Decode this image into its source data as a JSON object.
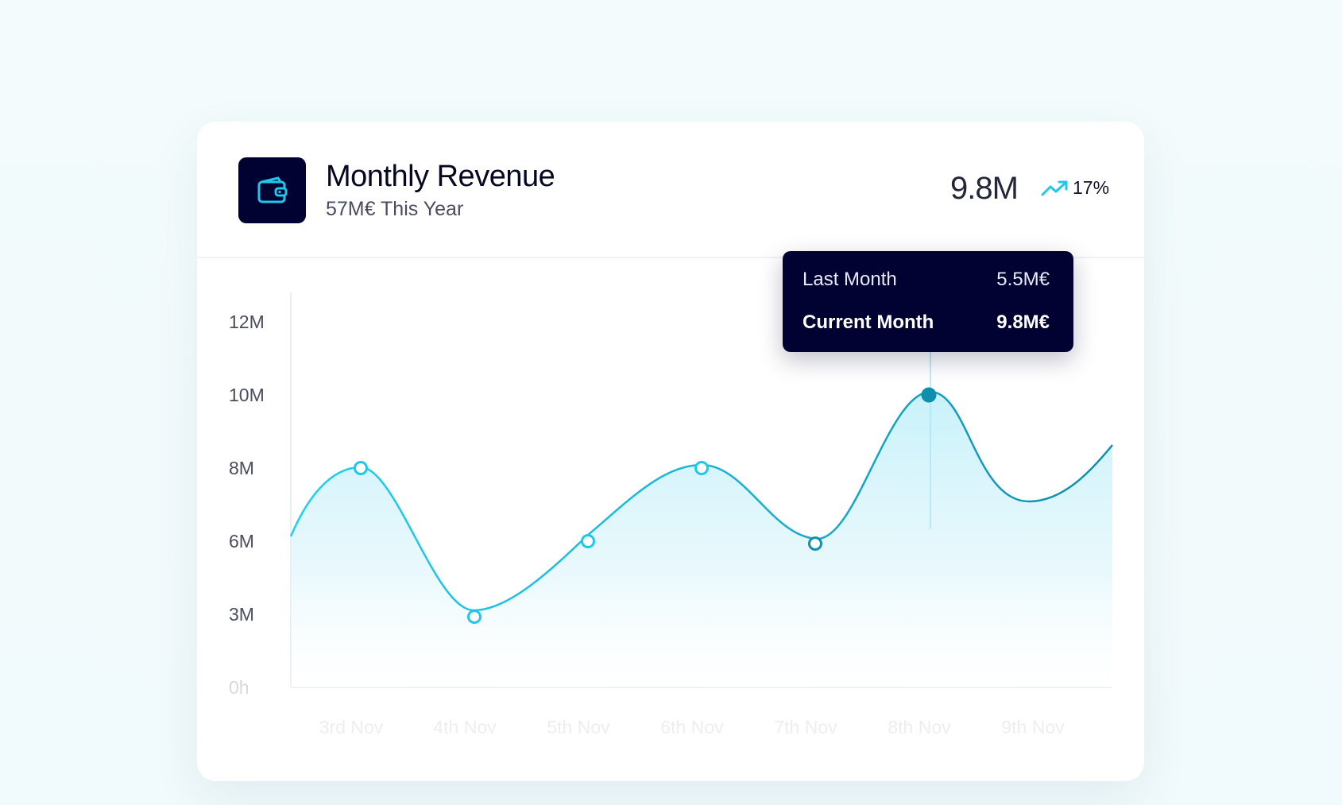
{
  "card": {
    "title": "Monthly Revenue",
    "subtitle": "57M€ This Year",
    "icon": "wallet-icon",
    "kpi": {
      "value": "9.8M",
      "trend_icon": "trending-up-icon",
      "change": "17%"
    }
  },
  "tooltip": {
    "rows": [
      {
        "label": "Last Month",
        "value": "5.5M€"
      },
      {
        "label": "Current Month",
        "value": "9.8M€"
      }
    ]
  },
  "colors": {
    "accent": "#1ec8ea",
    "accent_dark": "#0e8fae",
    "tile": "#020232",
    "tooltip_bg": "#020232"
  },
  "chart_data": {
    "type": "area",
    "title": "Monthly Revenue",
    "xlabel": "",
    "ylabel": "",
    "y_ticks": [
      "0h",
      "3M",
      "6M",
      "8M",
      "10M",
      "12M"
    ],
    "x_ticks": [
      "3rd Nov",
      "4th Nov",
      "5th Nov",
      "6th Nov",
      "7th Nov",
      "8th Nov",
      "9th Nov"
    ],
    "points": [
      {
        "x": "3rd Nov",
        "y": 8.0
      },
      {
        "x": "4th Nov",
        "y": 2.9
      },
      {
        "x": "5th Nov",
        "y": 6.0
      },
      {
        "x": "6th Nov",
        "y": 8.0
      },
      {
        "x": "7th Nov",
        "y": 5.9
      },
      {
        "x": "8th Nov",
        "y": 10.0
      }
    ],
    "highlighted": "8th Nov",
    "grid": false
  }
}
